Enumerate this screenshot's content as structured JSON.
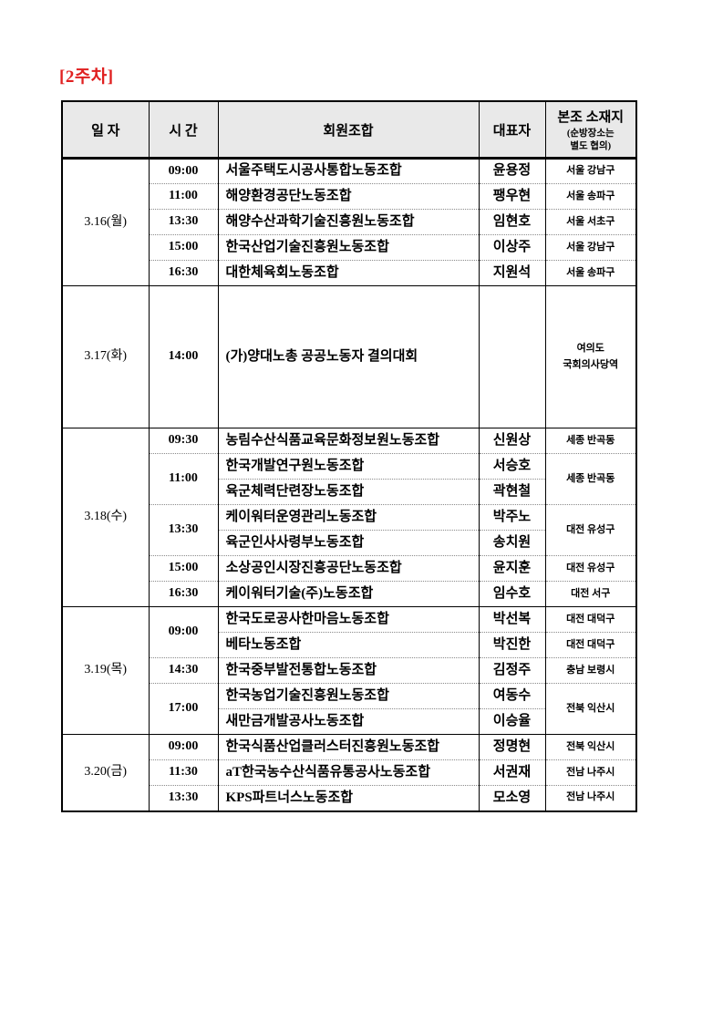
{
  "title": "[2주차]",
  "colors": {
    "title_red": "#e02020",
    "header_bg": "#e9e9e9",
    "border": "#000000",
    "dotted_separator": "#8a8a8a"
  },
  "headers": {
    "date": "일 자",
    "time": "시 간",
    "union": "회원조합",
    "representative": "대표자",
    "location": "본조 소재지",
    "location_note_line1": "(순방장소는",
    "location_note_line2": "별도 협의)"
  },
  "groups": [
    {
      "date": "3.16(월)",
      "rows": [
        {
          "time": "09:00",
          "union": "서울주택도시공사통합노동조합",
          "rep": "윤용정",
          "loc": "서울 강남구"
        },
        {
          "time": "11:00",
          "union": "해양환경공단노동조합",
          "rep": "팽우현",
          "loc": "서울 송파구"
        },
        {
          "time": "13:30",
          "union": "해양수산과학기술진흥원노동조합",
          "rep": "임현호",
          "loc": "서울 서초구"
        },
        {
          "time": "15:00",
          "union": "한국산업기술진흥원노동조합",
          "rep": "이상주",
          "loc": "서울 강남구"
        },
        {
          "time": "16:30",
          "union": "대한체육회노동조합",
          "rep": "지원석",
          "loc": "서울 송파구"
        }
      ]
    },
    {
      "date": "3.17(화)",
      "rows": [
        {
          "time": "14:00",
          "union": "(가)양대노총 공공노동자 결의대회",
          "rep": "",
          "loc_line1": "여의도",
          "loc_line2": "국회의사당역"
        }
      ]
    },
    {
      "date": "3.18(수)",
      "rows": [
        {
          "time": "09:30",
          "union": "농림수산식품교육문화정보원노동조합",
          "rep": "신원상",
          "loc": "세종 반곡동"
        },
        {
          "time": "11:00",
          "union": "한국개발연구원노동조합",
          "rep": "서승호",
          "loc": "세종 반곡동"
        },
        {
          "union": "육군체력단련장노동조합",
          "rep": "곽현철"
        },
        {
          "time": "13:30",
          "union": "케이워터운영관리노동조합",
          "rep": "박주노",
          "loc": "대전 유성구"
        },
        {
          "union": "육군인사사령부노동조합",
          "rep": "송치원"
        },
        {
          "time": "15:00",
          "union": "소상공인시장진흥공단노동조합",
          "rep": "윤지훈",
          "loc": "대전 유성구"
        },
        {
          "time": "16:30",
          "union": "케이워터기술(주)노동조합",
          "rep": "임수호",
          "loc": "대전 서구"
        }
      ]
    },
    {
      "date": "3.19(목)",
      "rows": [
        {
          "time": "09:00",
          "union": "한국도로공사한마음노동조합",
          "rep": "박선복",
          "loc": "대전 대덕구"
        },
        {
          "union": "베타노동조합",
          "rep": "박진한",
          "loc": "대전 대덕구"
        },
        {
          "time": "14:30",
          "union": "한국중부발전통합노동조합",
          "rep": "김정주",
          "loc": "충남 보령시"
        },
        {
          "time": "17:00",
          "union": "한국농업기술진흥원노동조합",
          "rep": "여동수",
          "loc": "전북 익산시"
        },
        {
          "union": "새만금개발공사노동조합",
          "rep": "이승율"
        }
      ]
    },
    {
      "date": "3.20(금)",
      "rows": [
        {
          "time": "09:00",
          "union": "한국식품산업클러스터진흥원노동조합",
          "rep": "정명현",
          "loc": "전북 익산시"
        },
        {
          "time": "11:30",
          "union": "aT한국농수산식품유통공사노동조합",
          "rep": "서권재",
          "loc": "전남 나주시"
        },
        {
          "time": "13:30",
          "union": "KPS파트너스노동조합",
          "rep": "모소영",
          "loc": "전남 나주시"
        }
      ]
    }
  ]
}
